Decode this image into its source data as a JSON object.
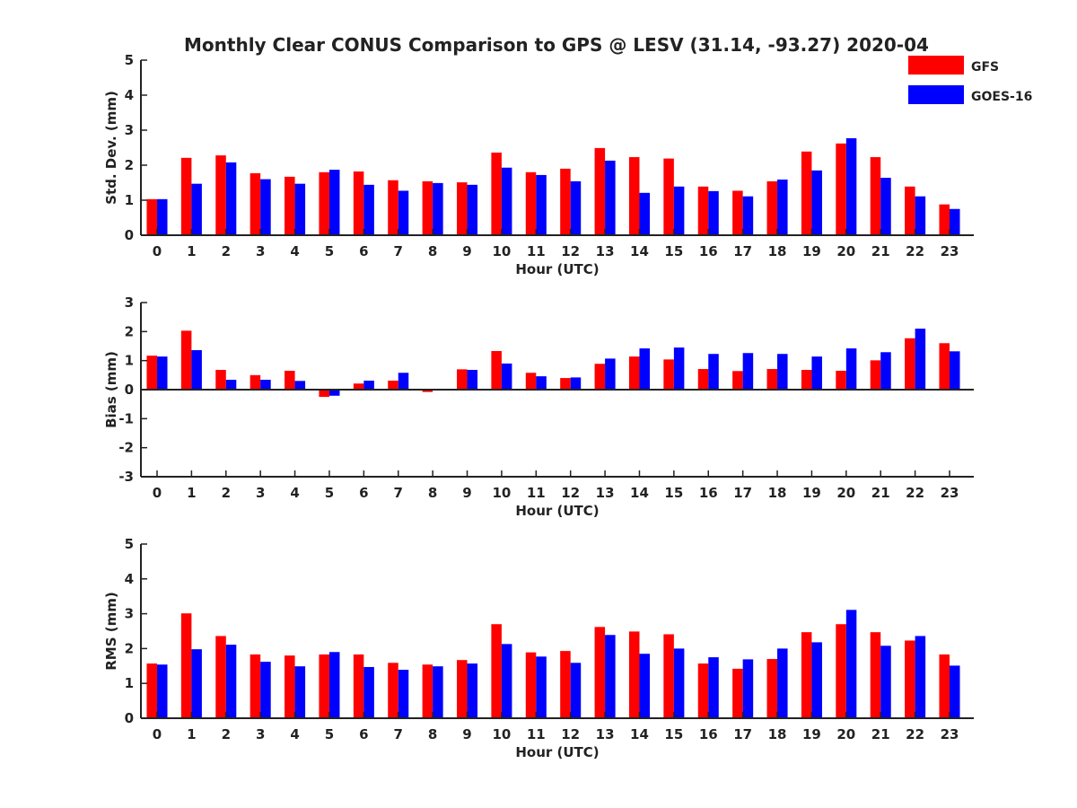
{
  "chart_data": {
    "title": "Monthly Clear CONUS Comparison to GPS @ LESV (31.14, -93.27) 2020-04",
    "legend": {
      "placement": "top-right",
      "entries": [
        {
          "name": "GFS",
          "color": "#ff0000"
        },
        {
          "name": "GOES-16",
          "color": "#0000ff"
        }
      ]
    },
    "charts": [
      {
        "type": "bar",
        "xlabel": "Hour (UTC)",
        "ylabel": "Std. Dev. (mm)",
        "ylim": [
          0,
          5
        ],
        "yticks": [
          0,
          1,
          2,
          3,
          4,
          5
        ],
        "categories": [
          "0",
          "1",
          "2",
          "3",
          "4",
          "5",
          "6",
          "7",
          "8",
          "9",
          "10",
          "11",
          "12",
          "13",
          "14",
          "15",
          "16",
          "17",
          "18",
          "19",
          "20",
          "21",
          "22",
          "23"
        ],
        "series": [
          {
            "name": "GFS",
            "color": "#ff0000",
            "values": [
              1.03,
              2.21,
              2.28,
              1.77,
              1.67,
              1.8,
              1.82,
              1.57,
              1.54,
              1.51,
              2.36,
              1.8,
              1.9,
              2.49,
              2.23,
              2.19,
              1.39,
              1.27,
              1.54,
              2.39,
              2.62,
              2.23,
              1.39,
              0.88
            ]
          },
          {
            "name": "GOES-16",
            "color": "#0000ff",
            "values": [
              1.03,
              1.47,
              2.08,
              1.6,
              1.47,
              1.87,
              1.44,
              1.27,
              1.49,
              1.44,
              1.93,
              1.72,
              1.54,
              2.13,
              1.21,
              1.39,
              1.26,
              1.11,
              1.59,
              1.85,
              2.77,
              1.64,
              1.11,
              0.75
            ]
          }
        ]
      },
      {
        "type": "bar",
        "xlabel": "Hour (UTC)",
        "ylabel": "Bias (mm)",
        "ylim": [
          -3,
          3
        ],
        "yticks": [
          -3,
          -2,
          -1,
          0,
          1,
          2,
          3
        ],
        "categories": [
          "0",
          "1",
          "2",
          "3",
          "4",
          "5",
          "6",
          "7",
          "8",
          "9",
          "10",
          "11",
          "12",
          "13",
          "14",
          "15",
          "16",
          "17",
          "18",
          "19",
          "20",
          "21",
          "22",
          "23"
        ],
        "series": [
          {
            "name": "GFS",
            "color": "#ff0000",
            "values": [
              1.17,
              2.03,
              0.68,
              0.5,
              0.65,
              -0.25,
              0.21,
              0.31,
              -0.08,
              0.7,
              1.33,
              0.58,
              0.4,
              0.89,
              1.14,
              1.04,
              0.71,
              0.64,
              0.71,
              0.68,
              0.65,
              1.01,
              1.77,
              1.6
            ]
          },
          {
            "name": "GOES-16",
            "color": "#0000ff",
            "values": [
              1.14,
              1.36,
              0.34,
              0.34,
              0.3,
              -0.21,
              0.31,
              0.58,
              0.03,
              0.68,
              0.9,
              0.46,
              0.42,
              1.07,
              1.42,
              1.45,
              1.23,
              1.26,
              1.23,
              1.14,
              1.42,
              1.29,
              2.1,
              1.32
            ]
          }
        ]
      },
      {
        "type": "bar",
        "xlabel": "Hour (UTC)",
        "ylabel": "RMS (mm)",
        "ylim": [
          0,
          5
        ],
        "yticks": [
          0,
          1,
          2,
          3,
          4,
          5
        ],
        "categories": [
          "0",
          "1",
          "2",
          "3",
          "4",
          "5",
          "6",
          "7",
          "8",
          "9",
          "10",
          "11",
          "12",
          "13",
          "14",
          "15",
          "16",
          "17",
          "18",
          "19",
          "20",
          "21",
          "22",
          "23"
        ],
        "series": [
          {
            "name": "GFS",
            "color": "#ff0000",
            "values": [
              1.57,
              3.01,
              2.36,
              1.83,
              1.8,
              1.83,
              1.83,
              1.59,
              1.54,
              1.67,
              2.7,
              1.89,
              1.93,
              2.62,
              2.49,
              2.41,
              1.57,
              1.42,
              1.7,
              2.47,
              2.7,
              2.47,
              2.23,
              1.83
            ]
          },
          {
            "name": "GOES-16",
            "color": "#0000ff",
            "values": [
              1.54,
              1.98,
              2.11,
              1.62,
              1.49,
              1.9,
              1.47,
              1.39,
              1.49,
              1.57,
              2.13,
              1.77,
              1.59,
              2.39,
              1.85,
              2.0,
              1.75,
              1.69,
              2.0,
              2.18,
              3.11,
              2.08,
              2.36,
              1.51
            ]
          }
        ]
      }
    ]
  }
}
